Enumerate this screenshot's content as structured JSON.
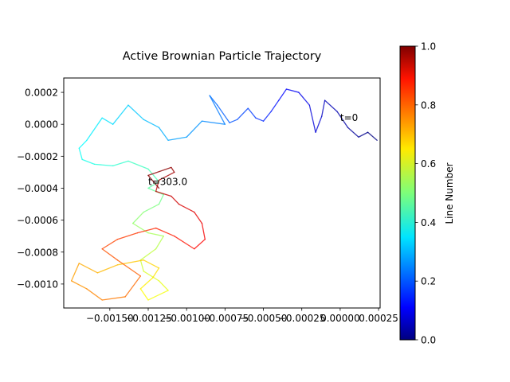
{
  "chart_data": {
    "type": "line",
    "title": "Active Brownian Particle Trajectory",
    "xlabel": "",
    "ylabel": "",
    "xlim": [
      -0.0018,
      0.00026
    ],
    "ylim": [
      -0.00115,
      0.00029
    ],
    "x_ticks": [
      -0.0015,
      -0.00125,
      -0.001,
      -0.00075,
      -0.0005,
      -0.00025,
      0.0,
      0.00025
    ],
    "x_tick_labels": [
      "−0.00150",
      "−0.00125",
      "−0.00100",
      "−0.00075",
      "−0.00050",
      "−0.00025",
      "0.00000",
      "0.00025"
    ],
    "y_ticks": [
      0.0002,
      0.0,
      -0.0002,
      -0.0004,
      -0.0006,
      -0.0008,
      -0.001
    ],
    "y_tick_labels": [
      "0.0002",
      "0.0000",
      "−0.0002",
      "−0.0004",
      "−0.0006",
      "−0.0008",
      "−0.0010"
    ],
    "grid": false,
    "colormap": "jet",
    "line_alpha": 0.8,
    "trajectory": {
      "x": [
        0.00024,
        0.00018,
        0.00012,
        5e-05,
        -2e-05,
        -0.0001,
        -0.00012,
        -0.00016,
        -0.0002,
        -0.00027,
        -0.00035,
        -0.0004,
        -0.00045,
        -0.0005,
        -0.00055,
        -0.0006,
        -0.00067,
        -0.00072,
        -0.0008,
        -0.00085,
        -0.00075,
        -0.0009,
        -0.001,
        -0.00112,
        -0.00118,
        -0.00128,
        -0.00138,
        -0.00148,
        -0.00155,
        -0.00165,
        -0.0017,
        -0.00168,
        -0.0016,
        -0.00148,
        -0.00138,
        -0.00125,
        -0.00118,
        -0.00125,
        -0.00115,
        -0.00118,
        -0.00128,
        -0.00135,
        -0.00125,
        -0.00115,
        -0.0012,
        -0.0013,
        -0.00128,
        -0.00118,
        -0.00112,
        -0.00125,
        -0.0013,
        -0.00122,
        -0.00118,
        -0.00128,
        -0.00145,
        -0.00158,
        -0.0017,
        -0.00175,
        -0.00165,
        -0.00155,
        -0.0014,
        -0.0013,
        -0.00145,
        -0.00155,
        -0.00145,
        -0.00132,
        -0.0012,
        -0.00108,
        -0.00095,
        -0.00088,
        -0.0009,
        -0.00095,
        -0.00105,
        -0.0011,
        -0.0012,
        -0.00118,
        -0.00108,
        -0.0011,
        -0.00125,
        -0.00118
      ],
      "y": [
        -0.0001,
        -5e-05,
        -8e-05,
        -2e-05,
        8e-05,
        0.00015,
        5e-05,
        -5e-05,
        0.00012,
        0.0002,
        0.00022,
        0.00015,
        8e-05,
        2e-05,
        4e-05,
        0.0001,
        3e-05,
        1e-05,
        0.00012,
        0.00018,
        0.0,
        2e-05,
        -8e-05,
        -0.0001,
        -2e-05,
        3e-05,
        0.00012,
        0.0,
        4e-05,
        -0.0001,
        -0.00015,
        -0.00022,
        -0.00025,
        -0.00026,
        -0.00023,
        -0.00028,
        -0.00036,
        -0.0004,
        -0.00044,
        -0.0005,
        -0.00055,
        -0.00062,
        -0.00068,
        -0.0007,
        -0.00078,
        -0.00085,
        -0.00092,
        -0.00098,
        -0.00104,
        -0.0011,
        -0.00103,
        -0.00096,
        -0.0009,
        -0.00085,
        -0.00088,
        -0.00093,
        -0.00087,
        -0.00098,
        -0.00103,
        -0.0011,
        -0.00108,
        -0.00095,
        -0.00085,
        -0.00078,
        -0.00072,
        -0.00068,
        -0.00065,
        -0.0007,
        -0.00078,
        -0.00072,
        -0.00062,
        -0.00055,
        -0.0005,
        -0.00045,
        -0.00042,
        -0.00035,
        -0.0003,
        -0.00027,
        -0.00032,
        -0.0004
      ]
    },
    "annotations": [
      {
        "text": "t=0",
        "x": 0.0,
        "y": 2e-05
      },
      {
        "text": "t=303.0",
        "x": -0.00125,
        "y": -0.00038
      }
    ],
    "colorbar": {
      "label": "Line Number",
      "range": [
        0.0,
        1.0
      ],
      "ticks": [
        0.0,
        0.2,
        0.4,
        0.6,
        0.8,
        1.0
      ],
      "tick_labels": [
        "0.0",
        "0.2",
        "0.4",
        "0.6",
        "0.8",
        "1.0"
      ]
    }
  }
}
